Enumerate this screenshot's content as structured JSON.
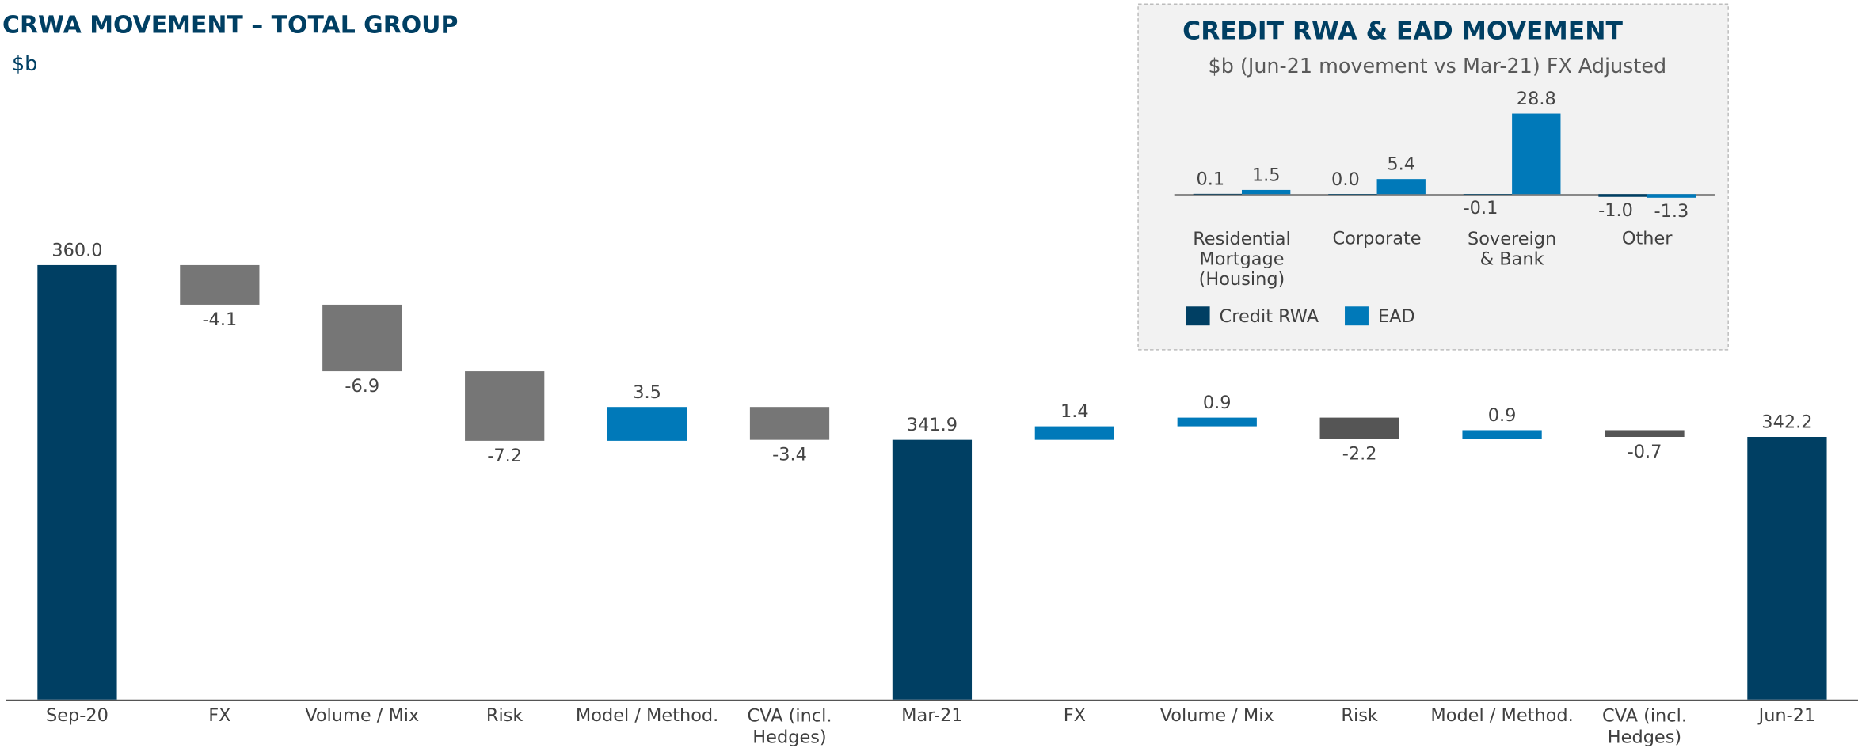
{
  "chart_data": [
    {
      "type": "waterfall",
      "title": "CRWA MOVEMENT – TOTAL GROUP",
      "subtitle": "$b",
      "categories": [
        "Sep-20",
        "FX",
        "Volume / Mix",
        "Risk",
        "Model / Method.",
        "CVA (incl.\nHedges)",
        "Mar-21",
        "FX",
        "Volume / Mix",
        "Risk",
        "Model / Method.",
        "CVA (incl.\nHedges)",
        "Jun-21"
      ],
      "values": [
        360.0,
        -4.1,
        -6.9,
        -7.2,
        3.5,
        -3.4,
        341.9,
        1.4,
        0.9,
        -2.2,
        0.9,
        -0.7,
        342.2
      ],
      "value_labels": [
        "360.0",
        "-4.1",
        "-6.9",
        "-7.2",
        "3.5",
        "-3.4",
        "341.9",
        "1.4",
        "0.9",
        "-2.2",
        "0.9",
        "-0.7",
        "342.2"
      ],
      "totals": [
        0,
        6,
        12
      ],
      "colors": [
        "#003f63",
        "#767676",
        "#767676",
        "#767676",
        "#0079b9",
        "#767676",
        "#003f63",
        "#0079b9",
        "#0079b9",
        "#555555",
        "#0079b9",
        "#555555",
        "#003f63"
      ],
      "ylim": [
        315,
        360
      ]
    },
    {
      "type": "bar",
      "title": "CREDIT RWA & EAD MOVEMENT",
      "subtitle": "$b (Jun-21 movement vs Mar-21) FX Adjusted",
      "categories": [
        "Residential\nMortgage\n(Housing)",
        "Corporate",
        "Sovereign\n& Bank",
        "Other"
      ],
      "series": [
        {
          "name": "Credit RWA",
          "color": "#003f63",
          "values": [
            0.1,
            0.0,
            -0.1,
            -1.0
          ],
          "value_labels": [
            "0.1",
            "0.0",
            "-0.1",
            "-1.0"
          ]
        },
        {
          "name": "EAD",
          "color": "#0079b9",
          "values": [
            1.5,
            5.4,
            28.8,
            -1.3
          ],
          "value_labels": [
            "1.5",
            "5.4",
            "28.8",
            "-1.3"
          ]
        }
      ],
      "ylim": [
        -3,
        30
      ]
    }
  ]
}
